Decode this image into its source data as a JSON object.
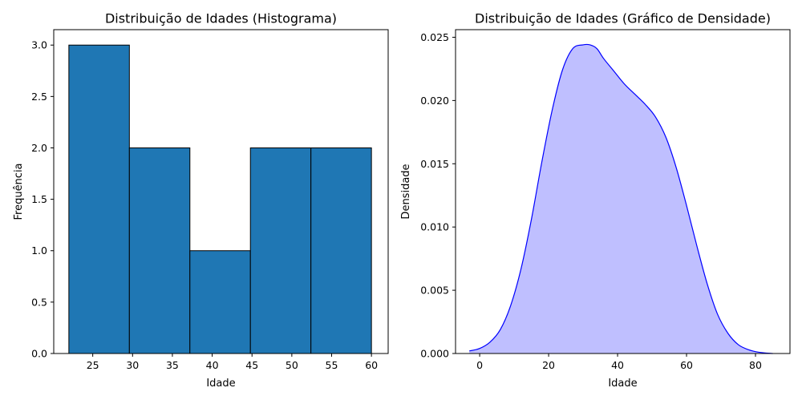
{
  "chart_data": [
    {
      "type": "bar",
      "subtype": "histogram",
      "title": "Distribuição de Idades (Histograma)",
      "xlabel": "Idade",
      "ylabel": "Frequência",
      "bins": [
        {
          "start": 22,
          "end": 29.6,
          "value": 3
        },
        {
          "start": 29.6,
          "end": 37.2,
          "value": 2
        },
        {
          "start": 37.2,
          "end": 44.8,
          "value": 1
        },
        {
          "start": 44.8,
          "end": 52.4,
          "value": 2
        },
        {
          "start": 52.4,
          "end": 60,
          "value": 2
        }
      ],
      "xlim": [
        20.1,
        62.1
      ],
      "ylim": [
        0,
        3.15
      ],
      "xticks": [
        25,
        30,
        35,
        40,
        45,
        50,
        55,
        60
      ],
      "xtick_labels": [
        "25",
        "30",
        "35",
        "40",
        "45",
        "50",
        "55",
        "60"
      ],
      "yticks": [
        0.0,
        0.5,
        1.0,
        1.5,
        2.0,
        2.5,
        3.0
      ],
      "ytick_labels": [
        "0.0",
        "0.5",
        "1.0",
        "1.5",
        "2.0",
        "2.5",
        "3.0"
      ],
      "bar_color": "#1f77b4",
      "edge_color": "#000000",
      "grid": false
    },
    {
      "type": "area",
      "subtype": "density",
      "title": "Distribuição de Idades (Gráfico de Densidade)",
      "xlabel": "Idade",
      "ylabel": "Densidade",
      "x": [
        -3,
        0,
        3,
        6,
        9,
        12,
        15,
        18,
        21,
        24,
        27,
        30,
        32,
        34,
        36,
        39,
        42,
        45,
        48,
        51,
        54,
        57,
        60,
        63,
        66,
        69,
        72,
        75,
        78,
        81,
        85
      ],
      "y": [
        0.0002,
        0.0004,
        0.0009,
        0.0019,
        0.0038,
        0.0067,
        0.0106,
        0.0151,
        0.0192,
        0.0224,
        0.0241,
        0.0244,
        0.0244,
        0.0241,
        0.0233,
        0.0223,
        0.0213,
        0.0205,
        0.0197,
        0.0187,
        0.0171,
        0.0147,
        0.0117,
        0.0085,
        0.0055,
        0.0031,
        0.0016,
        0.0007,
        0.0003,
        0.0001,
        0.0
      ],
      "xlim": [
        -7,
        90
      ],
      "ylim": [
        0,
        0.0256
      ],
      "xticks": [
        0,
        20,
        40,
        60,
        80
      ],
      "xtick_labels": [
        "0",
        "20",
        "40",
        "60",
        "80"
      ],
      "yticks": [
        0.0,
        0.005,
        0.01,
        0.015,
        0.02,
        0.025
      ],
      "ytick_labels": [
        "0.000",
        "0.005",
        "0.010",
        "0.015",
        "0.020",
        "0.025"
      ],
      "line_color": "#0000ff",
      "fill_color": "#bfbfff",
      "grid": false
    }
  ]
}
